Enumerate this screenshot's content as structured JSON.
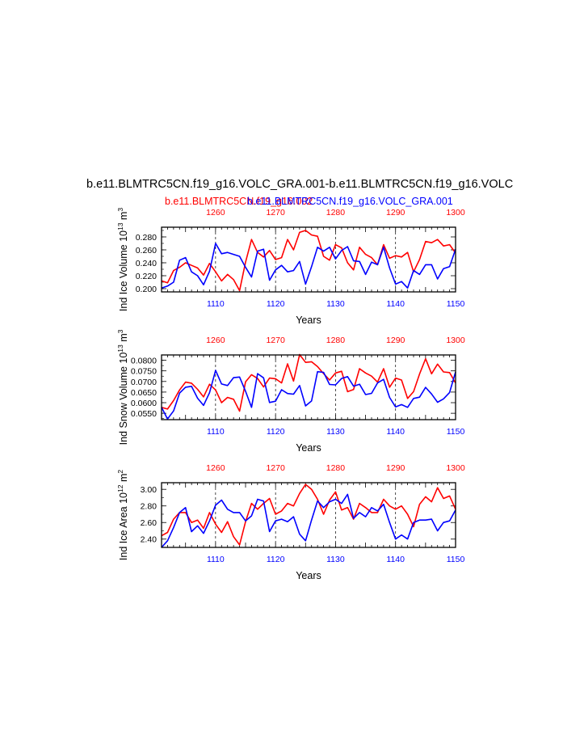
{
  "figure": {
    "title": "b.e11.BLMTRC5CN.f19_g16.VOLC_GRA.001-b.e11.BLMTRC5CN.f19_g16.VOLC",
    "subtitle_red": "b.e11.BLMTRC5CN.f19_g16.002",
    "subtitle_blue": "b.e11.BLMTRC5CN.f19_g16.VOLC_GRA.001"
  },
  "colors": {
    "red": "#ff0000",
    "blue": "#0000ff",
    "axis": "#000000"
  },
  "chart_data": [
    {
      "type": "line",
      "ylabel": "Ind Ice Volume 10",
      "ylabel_exp": "13",
      "ylabel_unit": " m",
      "ylabel_unit_exp": "3",
      "xlabel": "Years",
      "xlim_bottom": [
        1101,
        1150
      ],
      "xlim_top": [
        1251,
        1300
      ],
      "ylim": [
        0.195,
        0.295
      ],
      "yticks": [
        0.2,
        0.22,
        0.24,
        0.26,
        0.28
      ],
      "ytick_labels": [
        "0.200",
        "0.220",
        "0.240",
        "0.260",
        "0.280"
      ],
      "xticks_bottom": [
        "1110",
        "1120",
        "1130",
        "1140",
        "1150"
      ],
      "xticks_top": [
        "1260",
        "1270",
        "1280",
        "1290",
        "1300"
      ],
      "grid": "dashed vertical at labeled years",
      "series": [
        {
          "color": "red",
          "axis": "top",
          "values": [
            0.212,
            0.209,
            0.228,
            0.233,
            0.24,
            0.236,
            0.232,
            0.221,
            0.239,
            0.226,
            0.212,
            0.222,
            0.214,
            0.197,
            0.241,
            0.276,
            0.256,
            0.249,
            0.259,
            0.245,
            0.248,
            0.276,
            0.26,
            0.287,
            0.29,
            0.283,
            0.281,
            0.25,
            0.244,
            0.268,
            0.263,
            0.24,
            0.229,
            0.264,
            0.253,
            0.248,
            0.237,
            0.268,
            0.247,
            0.251,
            0.249,
            0.256,
            0.226,
            0.245,
            0.273,
            0.271,
            0.276,
            0.266,
            0.268,
            0.255
          ]
        },
        {
          "color": "blue",
          "axis": "bottom",
          "values": [
            0.201,
            0.204,
            0.21,
            0.244,
            0.248,
            0.226,
            0.22,
            0.206,
            0.227,
            0.27,
            0.254,
            0.256,
            0.253,
            0.25,
            0.233,
            0.218,
            0.258,
            0.261,
            0.213,
            0.229,
            0.236,
            0.226,
            0.228,
            0.242,
            0.207,
            0.234,
            0.264,
            0.258,
            0.264,
            0.246,
            0.259,
            0.265,
            0.243,
            0.242,
            0.222,
            0.241,
            0.237,
            0.264,
            0.232,
            0.207,
            0.211,
            0.201,
            0.228,
            0.222,
            0.237,
            0.237,
            0.215,
            0.231,
            0.234,
            0.261
          ]
        }
      ]
    },
    {
      "type": "line",
      "ylabel": "Ind Snow Volume 10",
      "ylabel_exp": "13",
      "ylabel_unit": " m",
      "ylabel_unit_exp": "3",
      "xlabel": "Years",
      "xlim_bottom": [
        1101,
        1150
      ],
      "xlim_top": [
        1251,
        1300
      ],
      "ylim": [
        0.052,
        0.0825
      ],
      "yticks": [
        0.055,
        0.06,
        0.065,
        0.07,
        0.075,
        0.08
      ],
      "ytick_labels": [
        "0.0550",
        "0.0600",
        "0.0650",
        "0.0700",
        "0.0750",
        "0.0800"
      ],
      "xticks_bottom": [
        "1110",
        "1120",
        "1130",
        "1140",
        "1150"
      ],
      "xticks_top": [
        "1260",
        "1270",
        "1280",
        "1290",
        "1300"
      ],
      "grid": "dashed vertical at labeled years",
      "series": [
        {
          "color": "red",
          "axis": "top",
          "values": [
            0.0578,
            0.057,
            0.061,
            0.066,
            0.0697,
            0.0692,
            0.0663,
            0.0627,
            0.0687,
            0.066,
            0.06,
            0.0625,
            0.0616,
            0.056,
            0.0698,
            0.0732,
            0.0714,
            0.0674,
            0.0716,
            0.0713,
            0.0693,
            0.0783,
            0.0702,
            0.0827,
            0.079,
            0.0793,
            0.077,
            0.0737,
            0.0707,
            0.074,
            0.0748,
            0.0652,
            0.0662,
            0.076,
            0.074,
            0.0725,
            0.0697,
            0.076,
            0.0673,
            0.0716,
            0.0707,
            0.062,
            0.0652,
            0.0735,
            0.0807,
            0.0736,
            0.0782,
            0.0745,
            0.0742,
            0.0693
          ]
        },
        {
          "color": "blue",
          "axis": "bottom",
          "values": [
            0.0578,
            0.0523,
            0.0561,
            0.0645,
            0.0673,
            0.0677,
            0.0621,
            0.0587,
            0.0647,
            0.0752,
            0.0688,
            0.0681,
            0.0718,
            0.0721,
            0.0654,
            0.0578,
            0.0737,
            0.0717,
            0.0601,
            0.0607,
            0.0661,
            0.0643,
            0.064,
            0.0681,
            0.0585,
            0.0608,
            0.0746,
            0.0743,
            0.0686,
            0.0684,
            0.0714,
            0.0723,
            0.0678,
            0.0687,
            0.0638,
            0.0644,
            0.0693,
            0.071,
            0.0625,
            0.058,
            0.0591,
            0.0578,
            0.062,
            0.0626,
            0.0672,
            0.0641,
            0.0602,
            0.0618,
            0.0648,
            0.0745
          ]
        }
      ]
    },
    {
      "type": "line",
      "ylabel": "Ind Ice Area 10",
      "ylabel_exp": "12",
      "ylabel_unit": " m",
      "ylabel_unit_exp": "2",
      "xlabel": "Years",
      "xlim_bottom": [
        1101,
        1150
      ],
      "xlim_top": [
        1251,
        1300
      ],
      "ylim": [
        2.3,
        3.08
      ],
      "yticks": [
        2.4,
        2.6,
        2.8,
        3.0
      ],
      "ytick_labels": [
        "2.40",
        "2.60",
        "2.80",
        "3.00"
      ],
      "xticks_bottom": [
        "1110",
        "1120",
        "1130",
        "1140",
        "1150"
      ],
      "xticks_top": [
        "1260",
        "1270",
        "1280",
        "1290",
        "1300"
      ],
      "grid": "dashed vertical at labeled years",
      "series": [
        {
          "color": "red",
          "axis": "top",
          "values": [
            2.44,
            2.48,
            2.64,
            2.72,
            2.72,
            2.6,
            2.63,
            2.53,
            2.72,
            2.58,
            2.48,
            2.61,
            2.43,
            2.33,
            2.61,
            2.83,
            2.76,
            2.83,
            2.89,
            2.7,
            2.74,
            2.83,
            2.8,
            2.95,
            3.06,
            3.0,
            2.88,
            2.7,
            2.87,
            2.97,
            2.75,
            2.78,
            2.64,
            2.83,
            2.78,
            2.72,
            2.72,
            2.88,
            2.8,
            2.76,
            2.8,
            2.7,
            2.55,
            2.82,
            2.91,
            2.85,
            3.02,
            2.89,
            2.92,
            2.76
          ]
        },
        {
          "color": "blue",
          "axis": "bottom",
          "values": [
            2.3,
            2.38,
            2.54,
            2.72,
            2.78,
            2.49,
            2.56,
            2.47,
            2.62,
            2.81,
            2.87,
            2.76,
            2.72,
            2.72,
            2.62,
            2.68,
            2.88,
            2.86,
            2.49,
            2.62,
            2.64,
            2.61,
            2.67,
            2.46,
            2.38,
            2.63,
            2.86,
            2.78,
            2.85,
            2.88,
            2.83,
            2.94,
            2.65,
            2.72,
            2.67,
            2.78,
            2.74,
            2.82,
            2.6,
            2.4,
            2.45,
            2.4,
            2.6,
            2.63,
            2.63,
            2.64,
            2.5,
            2.6,
            2.62,
            2.75
          ]
        }
      ]
    }
  ]
}
